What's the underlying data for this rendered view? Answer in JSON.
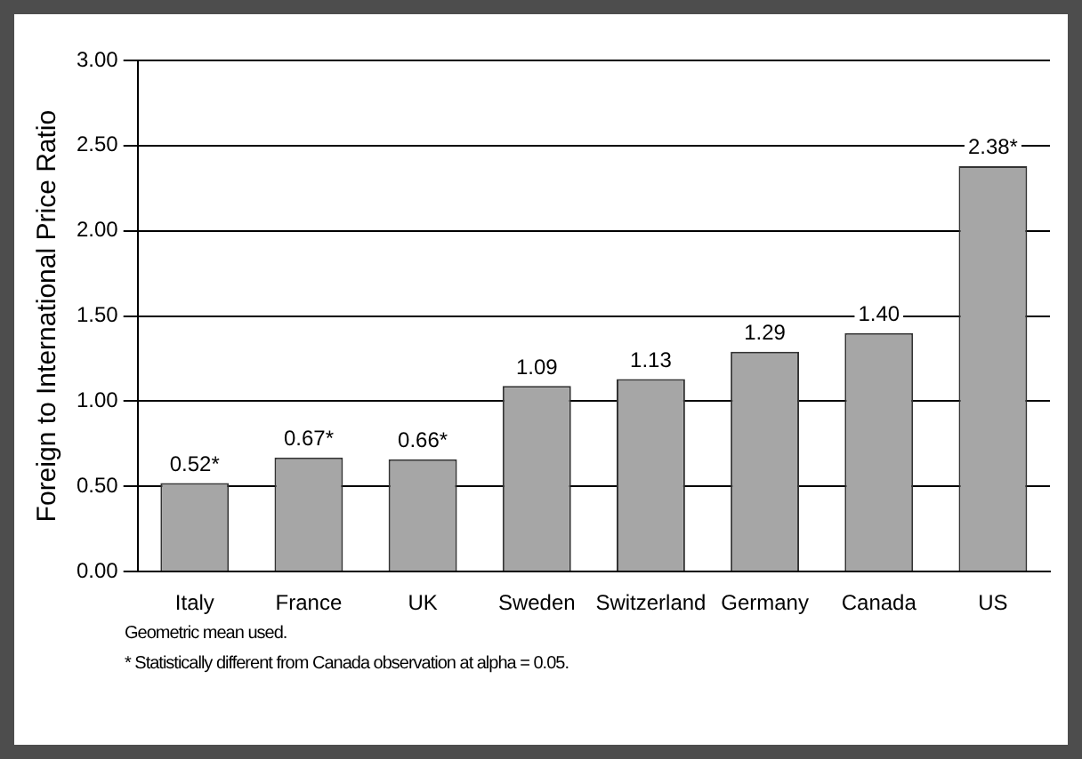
{
  "chart_data": {
    "type": "bar",
    "ylabel": "Foreign to International Price Ratio",
    "categories": [
      "Italy",
      "France",
      "UK",
      "Sweden",
      "Switzerland",
      "Germany",
      "Canada",
      "US"
    ],
    "values": [
      0.52,
      0.67,
      0.66,
      1.09,
      1.13,
      1.29,
      1.4,
      2.38
    ],
    "value_labels": [
      "0.52*",
      "0.67*",
      "0.66*",
      "1.09",
      "1.13",
      "1.29",
      "1.40",
      "2.38*"
    ],
    "color": "#a6a6a6",
    "ylim": [
      0,
      3
    ],
    "yticks": [
      {
        "value": 0,
        "label": "0.00"
      },
      {
        "value": 0.5,
        "label": "0.50"
      },
      {
        "value": 1,
        "label": "1.00"
      },
      {
        "value": 1.5,
        "label": "1.50"
      },
      {
        "value": 2,
        "label": "2.00"
      },
      {
        "value": 2.5,
        "label": "2.50"
      },
      {
        "value": 3,
        "label": "3.00"
      }
    ],
    "grid": "y",
    "legend": false,
    "annotations": [
      "Geometric mean used.",
      "* Statistically different from Canada observation at alpha = 0.05."
    ]
  }
}
